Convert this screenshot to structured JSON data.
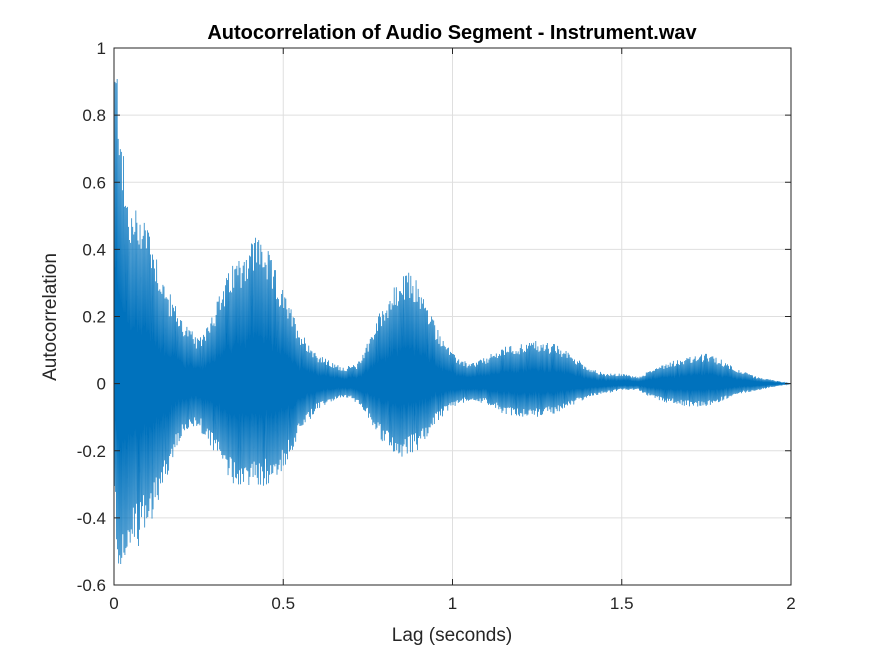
{
  "chart_data": {
    "type": "line",
    "title": "Autocorrelation of Audio Segment - Instrument.wav",
    "xlabel": "Lag (seconds)",
    "ylabel": "Autocorrelation",
    "xlim": [
      0,
      2
    ],
    "ylim": [
      -0.6,
      1
    ],
    "xticks": [
      0,
      0.5,
      1,
      1.5,
      2
    ],
    "xtick_labels": [
      "0",
      "0.5",
      "1",
      "1.5",
      "2"
    ],
    "yticks": [
      -0.6,
      -0.4,
      -0.2,
      0,
      0.2,
      0.4,
      0.6,
      0.8,
      1
    ],
    "ytick_labels": [
      "-0.6",
      "-0.4",
      "-0.2",
      "0",
      "0.2",
      "0.4",
      "0.6",
      "0.8",
      "1"
    ],
    "grid": true,
    "line_color": "#0072BD",
    "series": [
      {
        "envelope_upper": {
          "x": [
            0,
            0.01,
            0.02,
            0.03,
            0.05,
            0.08,
            0.1,
            0.15,
            0.2,
            0.25,
            0.3,
            0.35,
            0.4,
            0.43,
            0.45,
            0.5,
            0.55,
            0.6,
            0.65,
            0.68,
            0.72,
            0.75,
            0.8,
            0.85,
            0.88,
            0.9,
            0.95,
            1.0,
            1.05,
            1.1,
            1.15,
            1.2,
            1.25,
            1.3,
            1.35,
            1.4,
            1.45,
            1.5,
            1.55,
            1.6,
            1.65,
            1.7,
            1.75,
            1.8,
            1.85,
            1.9,
            1.95,
            2.0
          ],
          "y": [
            1.0,
            0.96,
            0.86,
            0.63,
            0.52,
            0.54,
            0.5,
            0.3,
            0.2,
            0.13,
            0.24,
            0.36,
            0.43,
            0.46,
            0.41,
            0.28,
            0.16,
            0.09,
            0.06,
            0.05,
            0.06,
            0.13,
            0.25,
            0.32,
            0.34,
            0.3,
            0.18,
            0.09,
            0.06,
            0.08,
            0.11,
            0.12,
            0.13,
            0.12,
            0.09,
            0.05,
            0.03,
            0.03,
            0.02,
            0.05,
            0.07,
            0.08,
            0.09,
            0.07,
            0.04,
            0.02,
            0.01,
            0.0
          ]
        },
        "envelope_lower": {
          "x": [
            0,
            0.01,
            0.02,
            0.05,
            0.1,
            0.15,
            0.2,
            0.25,
            0.3,
            0.35,
            0.4,
            0.45,
            0.5,
            0.55,
            0.6,
            0.65,
            0.7,
            0.75,
            0.8,
            0.85,
            0.9,
            0.95,
            1.0,
            1.05,
            1.1,
            1.15,
            1.2,
            1.25,
            1.3,
            1.35,
            1.4,
            1.45,
            1.5,
            1.55,
            1.6,
            1.65,
            1.7,
            1.75,
            1.8,
            1.85,
            1.9,
            1.95,
            2.0
          ],
          "y": [
            -0.3,
            -0.56,
            -0.55,
            -0.52,
            -0.44,
            -0.3,
            -0.16,
            -0.13,
            -0.22,
            -0.3,
            -0.31,
            -0.31,
            -0.26,
            -0.15,
            -0.08,
            -0.05,
            -0.04,
            -0.1,
            -0.19,
            -0.22,
            -0.2,
            -0.12,
            -0.07,
            -0.05,
            -0.06,
            -0.09,
            -0.1,
            -0.1,
            -0.09,
            -0.07,
            -0.04,
            -0.03,
            -0.02,
            -0.02,
            -0.05,
            -0.06,
            -0.07,
            -0.07,
            -0.05,
            -0.03,
            -0.02,
            -0.01,
            0.0
          ]
        }
      }
    ]
  }
}
